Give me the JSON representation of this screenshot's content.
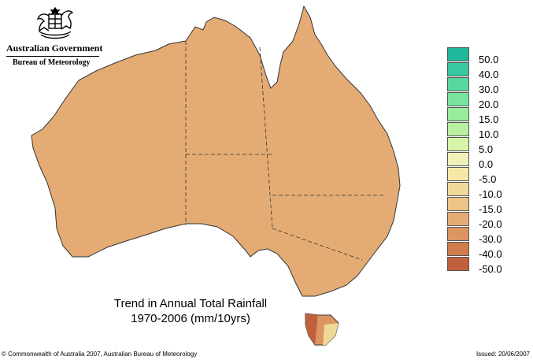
{
  "logo": {
    "line1": "Australian Government",
    "line2": "Bureau of Meteorology",
    "emblem": "coat-of-arms-icon"
  },
  "title": {
    "line1": "Trend in Annual Total Rainfall",
    "line2": "1970-2006 (mm/10yrs)"
  },
  "legend": [
    {
      "label": "50.0",
      "color": "#1fb89a"
    },
    {
      "label": "40.0",
      "color": "#38c8a0"
    },
    {
      "label": "30.0",
      "color": "#58d8a0"
    },
    {
      "label": "20.0",
      "color": "#78e4a0"
    },
    {
      "label": "15.0",
      "color": "#98ec9c"
    },
    {
      "label": "10.0",
      "color": "#b8f0a0"
    },
    {
      "label": "5.0",
      "color": "#d8f4a8"
    },
    {
      "label": "0.0",
      "color": "#f0f0b8"
    },
    {
      "label": "-5.0",
      "color": "#f4e8a8"
    },
    {
      "label": "-10.0",
      "color": "#f0d898"
    },
    {
      "label": "-15.0",
      "color": "#ecc488"
    },
    {
      "label": "-20.0",
      "color": "#e4ac74"
    },
    {
      "label": "-30.0",
      "color": "#dc9460"
    },
    {
      "label": "-40.0",
      "color": "#d07c4c"
    },
    {
      "label": "-50.0",
      "color": "#c0603c"
    }
  ],
  "footer": {
    "copyright": "© Commonwealth of Australia 2007, Australian Bureau of Meteorology",
    "issued": "Issued: 20/06/2007"
  }
}
